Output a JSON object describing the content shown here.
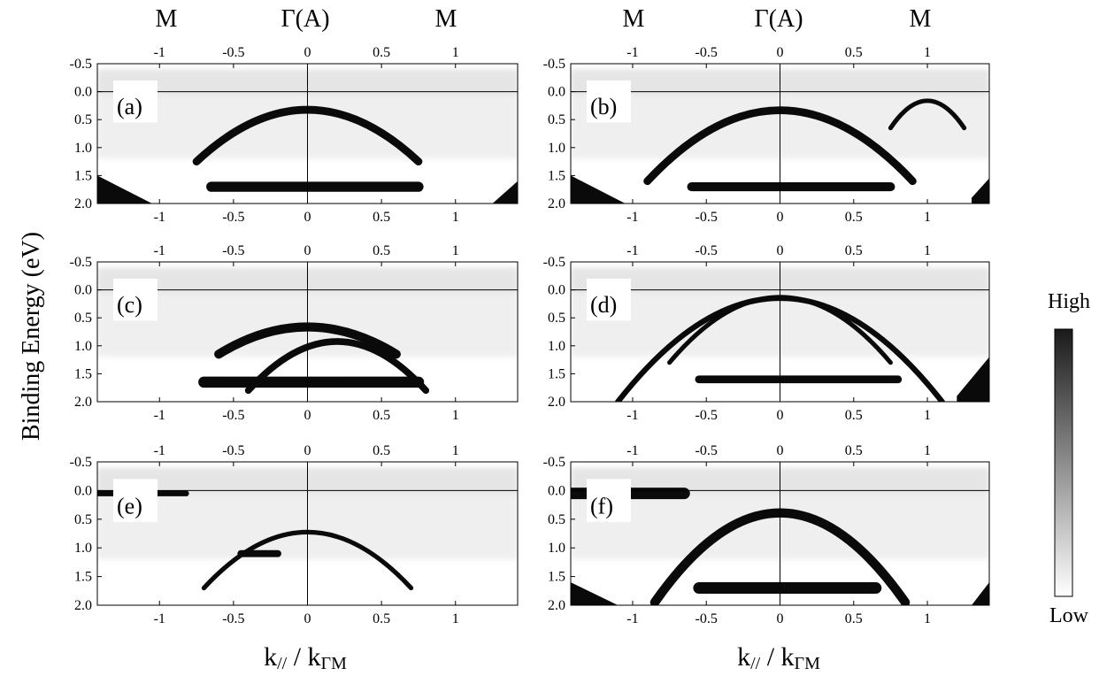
{
  "chart_data": {
    "type": "heatmap",
    "ylabel": "Binding Energy (eV)",
    "xlabel_main": "k",
    "xlabel_sub": "//",
    "xlabel_div": " / k",
    "xlabel_sub2": "ΓM",
    "top_labels": [
      "M",
      "Γ(A)",
      "M"
    ],
    "colorbar": {
      "high": "High",
      "low": "Low"
    },
    "xlim": [
      -1.42,
      1.42
    ],
    "ylim": [
      -0.5,
      2.0
    ],
    "x_ticks": [
      -1,
      -0.5,
      0,
      0.5,
      1
    ],
    "y_ticks": [
      -0.5,
      0.0,
      0.5,
      1.0,
      1.5,
      2.0
    ],
    "y_tick_labels": [
      "-0.5",
      "0.0",
      "0.5",
      "1.0",
      "1.5",
      "2.0"
    ],
    "x_tick_labels": [
      "-1",
      "-0.5",
      "0",
      "0.5",
      "1"
    ],
    "fermi_level": 0.0,
    "panels": [
      {
        "label": "(a)",
        "bands": [
          {
            "type": "dome",
            "apex": [
              0,
              0.3
            ],
            "w": 0.75,
            "depth": 0.95,
            "th": 0.14
          },
          {
            "type": "flat",
            "x": [
              -0.65,
              0.75
            ],
            "e": 1.7,
            "th": 0.18
          },
          {
            "type": "corner",
            "x0": -1.42,
            "x1": -1.05,
            "e0": 1.5,
            "e1": 2.0
          },
          {
            "type": "corner",
            "x0": 1.25,
            "x1": 1.42,
            "e0": 2.0,
            "e1": 1.6
          }
        ]
      },
      {
        "label": "(b)",
        "bands": [
          {
            "type": "dome",
            "apex": [
              0,
              0.3
            ],
            "w": 0.9,
            "depth": 1.3,
            "th": 0.14
          },
          {
            "type": "flat",
            "x": [
              -0.6,
              0.75
            ],
            "e": 1.7,
            "th": 0.16
          },
          {
            "type": "dome",
            "apex": [
              1.0,
              0.15
            ],
            "w": 0.25,
            "depth": 0.5,
            "th": 0.08
          },
          {
            "type": "corner",
            "x0": -1.42,
            "x1": -1.05,
            "e0": 1.5,
            "e1": 2.0
          },
          {
            "type": "corner",
            "x0": 1.3,
            "x1": 1.42,
            "e0": 1.9,
            "e1": 1.55
          }
        ]
      },
      {
        "label": "(c)",
        "bands": [
          {
            "type": "dome",
            "apex": [
              0,
              0.65
            ],
            "w": 0.6,
            "depth": 0.5,
            "th": 0.16
          },
          {
            "type": "flat",
            "x": [
              -0.7,
              0.75
            ],
            "e": 1.65,
            "th": 0.2
          },
          {
            "type": "dome",
            "apex": [
              0.2,
              0.9
            ],
            "w": 0.6,
            "depth": 0.9,
            "th": 0.12
          }
        ]
      },
      {
        "label": "(d)",
        "bands": [
          {
            "type": "dome",
            "apex": [
              0,
              0.1
            ],
            "w": 1.1,
            "depth": 1.9,
            "th": 0.1
          },
          {
            "type": "dome",
            "apex": [
              0,
              0.1
            ],
            "w": 0.75,
            "depth": 1.2,
            "th": 0.08
          },
          {
            "type": "flat",
            "x": [
              -0.55,
              0.8
            ],
            "e": 1.6,
            "th": 0.14
          },
          {
            "type": "corner",
            "x0": 1.2,
            "x1": 1.42,
            "e0": 1.9,
            "e1": 1.2
          }
        ]
      },
      {
        "label": "(e)",
        "bands": [
          {
            "type": "flat",
            "x": [
              -1.42,
              -0.82
            ],
            "e": 0.05,
            "th": 0.1
          },
          {
            "type": "dome",
            "apex": [
              0,
              0.7
            ],
            "w": 0.7,
            "depth": 1.0,
            "th": 0.08
          },
          {
            "type": "flat",
            "x": [
              -0.45,
              -0.2
            ],
            "e": 1.1,
            "th": 0.12
          }
        ]
      },
      {
        "label": "(f)",
        "bands": [
          {
            "type": "flat",
            "x": [
              -1.42,
              -0.65
            ],
            "e": 0.05,
            "th": 0.2
          },
          {
            "type": "dome",
            "apex": [
              0,
              0.35
            ],
            "w": 0.85,
            "depth": 1.6,
            "th": 0.16
          },
          {
            "type": "flat",
            "x": [
              -0.55,
              0.65
            ],
            "e": 1.7,
            "th": 0.2
          },
          {
            "type": "corner",
            "x0": -1.42,
            "x1": -1.1,
            "e0": 1.6,
            "e1": 2.0
          },
          {
            "type": "corner",
            "x0": 1.3,
            "x1": 1.42,
            "e0": 2.0,
            "e1": 1.6
          }
        ]
      }
    ]
  }
}
